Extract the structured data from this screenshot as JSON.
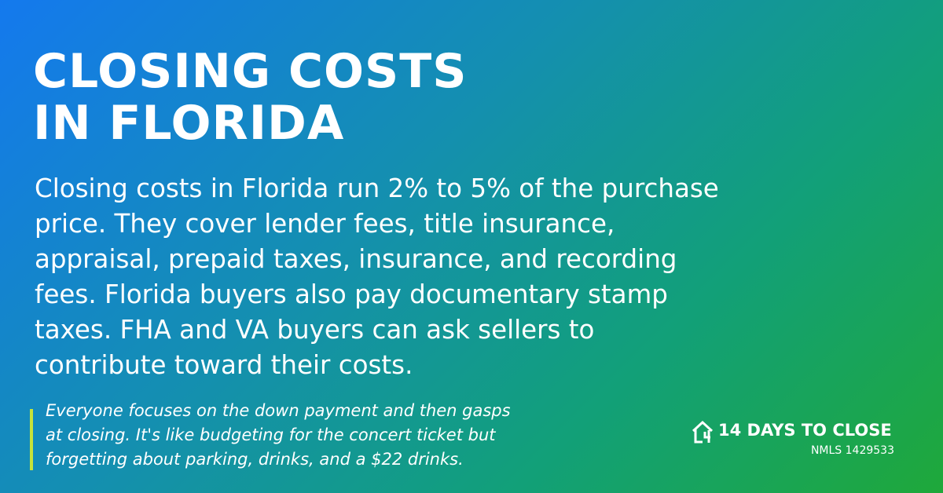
{
  "header": {
    "title_lines": [
      "CLOSING COSTS",
      "IN FLORIDA"
    ]
  },
  "body": {
    "lines": [
      "Closing costs in Florida run 2% to 5% of the purchase",
      "price. They cover lender fees, title insurance,",
      "appraisal, prepaid taxes, insurance, and recording",
      "fees. Florida buyers also pay documentary stamp",
      "taxes. FHA and VA buyers can ask sellers to",
      "contribute toward their costs."
    ]
  },
  "quote": {
    "lines": [
      "Everyone focuses on the down payment and then gasps",
      "at closing. It's like budgeting for the concert ticket but",
      "forgetting about parking, drinks, and a $22 drinks."
    ]
  },
  "brand": {
    "name": "14 DAYS TO CLOSE",
    "license": "NMLS 1429533"
  }
}
